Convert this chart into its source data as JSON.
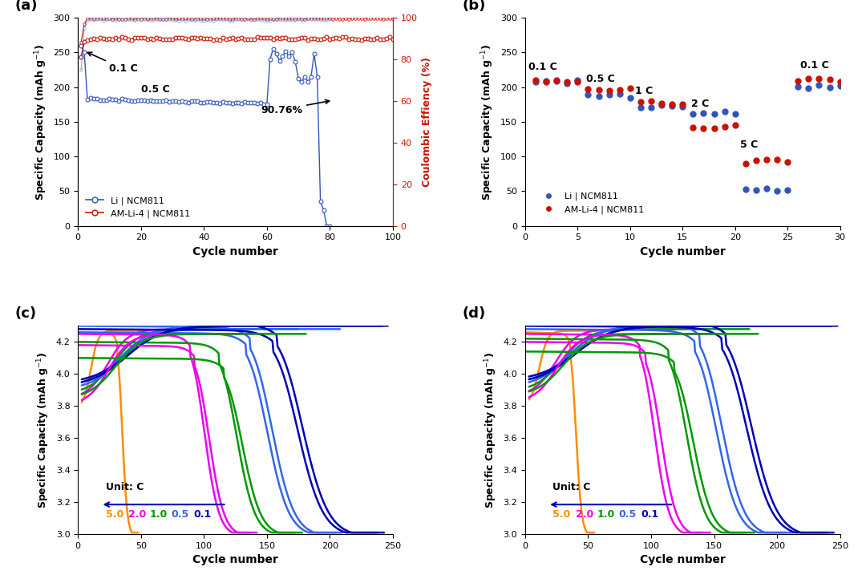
{
  "fig_width": 10.8,
  "fig_height": 7.32,
  "colors": {
    "blue": "#3355BB",
    "red": "#CC1100",
    "orange": "#FF8C00",
    "magenta": "#EE00EE",
    "green": "#009900",
    "med_blue": "#3366EE",
    "dark_blue": "#0000BB"
  },
  "panel_a": {
    "xlim": [
      0,
      100
    ],
    "ylim_left": [
      0,
      300
    ],
    "ylim_right": [
      0,
      100
    ],
    "xticks": [
      0,
      20,
      40,
      60,
      80,
      100
    ],
    "yticks_left": [
      0,
      50,
      100,
      150,
      200,
      250,
      300
    ],
    "yticks_right": [
      0,
      20,
      40,
      60,
      80,
      100
    ],
    "xlabel": "Cycle number",
    "ylabel_left": "Specific Capacity (mAh g$^{-1}$)",
    "ylabel_right": "Coulombic Effiency (%)",
    "legend": [
      "Li | NCM811",
      "AM-Li-4 | NCM811"
    ]
  },
  "panel_b": {
    "xlim": [
      0,
      30
    ],
    "ylim": [
      0,
      300
    ],
    "xticks": [
      0,
      5,
      10,
      15,
      20,
      25,
      30
    ],
    "yticks": [
      0,
      50,
      100,
      150,
      200,
      250,
      300
    ],
    "xlabel": "Cycle number",
    "ylabel": "Specific Capacity (mAh g$^{-1}$)",
    "legend": [
      "Li | NCM811",
      "AM-Li-4 | NCM811"
    ]
  },
  "panel_cd": {
    "xlim": [
      0,
      250
    ],
    "ylim": [
      3.0,
      4.3
    ],
    "xticks": [
      0,
      50,
      100,
      150,
      200,
      250
    ],
    "yticks": [
      3.0,
      3.2,
      3.4,
      3.6,
      3.8,
      4.0,
      4.2
    ],
    "xlabel": "Cycle number",
    "ylabel": "Specific Capacity (mAh g$^{-1}$)",
    "c_labels": [
      "5.0",
      "2.0",
      "1.0",
      "0.5",
      "0.1"
    ],
    "c_colors": [
      "#FF8C00",
      "#EE00EE",
      "#009900",
      "#3366EE",
      "#0000BB"
    ]
  }
}
